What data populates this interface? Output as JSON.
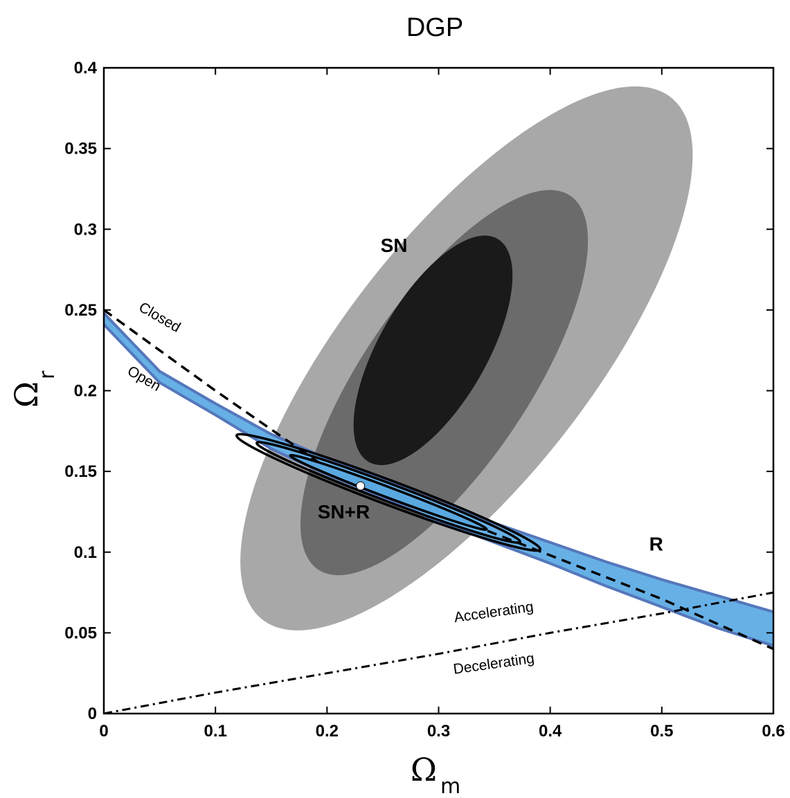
{
  "chart_data": {
    "type": "contour",
    "title": "DGP",
    "xlabel": {
      "symbol": "Ω",
      "subscript": "m"
    },
    "ylabel": {
      "symbol": "Ω",
      "subscript": "r"
    },
    "xlim": [
      0,
      0.6
    ],
    "ylim": [
      0,
      0.4
    ],
    "xticks": [
      0,
      0.1,
      0.2,
      0.3,
      0.4,
      0.5,
      0.6
    ],
    "xtick_labels": [
      "0",
      "0.1",
      "0.2",
      "0.3",
      "0.4",
      "0.5",
      "0.6"
    ],
    "yticks": [
      0,
      0.05,
      0.1,
      0.15,
      0.2,
      0.25,
      0.3,
      0.35,
      0.4
    ],
    "ytick_labels": [
      "0",
      "0.05",
      "0.1",
      "0.15",
      "0.2",
      "0.25",
      "0.3",
      "0.35",
      "0.4"
    ],
    "sn_contours": [
      {
        "level": "3-sigma",
        "color": "#a8a8a8",
        "center": [
          0.325,
          0.22
        ],
        "rx": 0.247,
        "ry": 0.092,
        "angle_deg": 52
      },
      {
        "level": "2-sigma",
        "color": "#6b6b6b",
        "center": [
          0.305,
          0.205
        ],
        "rx": 0.168,
        "ry": 0.062,
        "angle_deg": 56
      },
      {
        "level": "1-sigma",
        "color": "#1a1a1a",
        "center": [
          0.295,
          0.225
        ],
        "rx": 0.096,
        "ry": 0.04,
        "angle_deg": 60
      }
    ],
    "r_band": {
      "color": "#66b0e6",
      "edge_color": "#5577bb",
      "x": [
        0.0,
        0.05,
        0.1,
        0.15,
        0.2,
        0.25,
        0.3,
        0.35,
        0.4,
        0.45,
        0.5,
        0.55,
        0.6
      ],
      "upper": [
        0.248,
        0.212,
        0.192,
        0.173,
        0.158,
        0.145,
        0.131,
        0.118,
        0.106,
        0.094,
        0.083,
        0.073,
        0.063
      ],
      "lower": [
        0.241,
        0.205,
        0.185,
        0.164,
        0.148,
        0.134,
        0.119,
        0.106,
        0.093,
        0.079,
        0.066,
        0.053,
        0.042
      ]
    },
    "combined_contours": [
      {
        "level": "3-sigma",
        "center": [
          0.255,
          0.137
        ],
        "half_length": 0.136,
        "half_width": 0.0075,
        "slope": -0.26
      },
      {
        "level": "2-sigma",
        "center": [
          0.255,
          0.137
        ],
        "half_length": 0.118,
        "half_width": 0.0055,
        "slope": -0.26
      },
      {
        "level": "1-sigma",
        "center": [
          0.255,
          0.137
        ],
        "half_length": 0.088,
        "half_width": 0.0032,
        "slope": -0.26
      }
    ],
    "best_fit": [
      0.23,
      0.141
    ],
    "closed_open_boundary": {
      "style": "dashed",
      "x": [
        0.0,
        0.1,
        0.2,
        0.3,
        0.4,
        0.5,
        0.6
      ],
      "y": [
        0.25,
        0.2,
        0.152,
        0.125,
        0.098,
        0.071,
        0.04
      ]
    },
    "acceleration_boundary": {
      "style": "dash-dot",
      "x": [
        0.0,
        0.1,
        0.2,
        0.3,
        0.4,
        0.5,
        0.6
      ],
      "y": [
        0.0,
        0.013,
        0.025,
        0.037,
        0.05,
        0.062,
        0.075
      ]
    },
    "annotations": [
      {
        "text": "SN",
        "x": 0.26,
        "y": 0.286,
        "rotate": 0,
        "style": "region"
      },
      {
        "text": "SN+R",
        "x": 0.215,
        "y": 0.121,
        "rotate": 0,
        "style": "region"
      },
      {
        "text": "R",
        "x": 0.495,
        "y": 0.101,
        "rotate": 0,
        "style": "region"
      },
      {
        "text": "Closed",
        "x": 0.048,
        "y": 0.243,
        "rotate": 30,
        "style": "curve"
      },
      {
        "text": "Open",
        "x": 0.034,
        "y": 0.205,
        "rotate": 30,
        "style": "curve"
      },
      {
        "text": "Accelerating",
        "x": 0.35,
        "y": 0.06,
        "rotate": -8,
        "style": "curve"
      },
      {
        "text": "Decelerating",
        "x": 0.35,
        "y": 0.028,
        "rotate": -8,
        "style": "curve"
      }
    ]
  }
}
